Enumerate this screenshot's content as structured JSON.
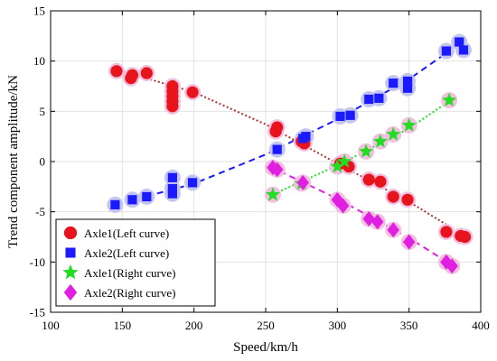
{
  "chart_data": {
    "type": "scatter",
    "title": "",
    "xlabel": "Speed/km/h",
    "ylabel": "Trend component amplitude/kN",
    "xlim": [
      100,
      400
    ],
    "ylim": [
      -15,
      15
    ],
    "x_ticks": [
      100,
      150,
      200,
      250,
      300,
      350,
      400
    ],
    "y_ticks": [
      -15,
      -10,
      -5,
      0,
      5,
      10,
      15
    ],
    "grid": true,
    "legend_position": "bottom-left",
    "series": [
      {
        "name": "Axle1(Left curve)",
        "color": "#e8141b",
        "halo_color": "#f2bfe0",
        "marker": "circle",
        "fit_style": "dotted",
        "fit_color": "#b03030",
        "points": [
          [
            146,
            9.0
          ],
          [
            156,
            8.3
          ],
          [
            157,
            8.6
          ],
          [
            167,
            8.8
          ],
          [
            185,
            7.5
          ],
          [
            185,
            7.0
          ],
          [
            185,
            6.5
          ],
          [
            185,
            6.0
          ],
          [
            185,
            5.5
          ],
          [
            199,
            6.9
          ],
          [
            257,
            3.0
          ],
          [
            258,
            3.4
          ],
          [
            275,
            2.0
          ],
          [
            277,
            1.8
          ],
          [
            302,
            -0.2
          ],
          [
            308,
            -0.5
          ],
          [
            322,
            -1.8
          ],
          [
            330,
            -2.0
          ],
          [
            339,
            -3.5
          ],
          [
            349,
            -3.8
          ],
          [
            376,
            -7.0
          ],
          [
            386,
            -7.4
          ],
          [
            389,
            -7.5
          ]
        ],
        "fit": [
          [
            145,
            9.2
          ],
          [
            200,
            6.9
          ],
          [
            250,
            3.7
          ],
          [
            300,
            -0.2
          ],
          [
            350,
            -4.0
          ],
          [
            390,
            -7.5
          ]
        ]
      },
      {
        "name": "Axle2(Left curve)",
        "color": "#1a1aff",
        "halo_color": "#c4c4f2",
        "marker": "square",
        "fit_style": "dashed",
        "fit_color": "#1a1aff",
        "points": [
          [
            145,
            -4.3
          ],
          [
            157,
            -3.8
          ],
          [
            167,
            -3.5
          ],
          [
            185,
            -1.6
          ],
          [
            185,
            -2.7
          ],
          [
            185,
            -3.2
          ],
          [
            199,
            -2.1
          ],
          [
            258,
            1.2
          ],
          [
            276,
            2.3
          ],
          [
            278,
            2.5
          ],
          [
            302,
            4.5
          ],
          [
            309,
            4.6
          ],
          [
            322,
            6.2
          ],
          [
            329,
            6.3
          ],
          [
            339,
            7.8
          ],
          [
            349,
            8.0
          ],
          [
            349,
            7.3
          ],
          [
            376,
            11.0
          ],
          [
            385,
            11.9
          ],
          [
            388,
            11.1
          ]
        ],
        "fit": [
          [
            145,
            -4.3
          ],
          [
            200,
            -2.2
          ],
          [
            250,
            0.7
          ],
          [
            300,
            4.2
          ],
          [
            350,
            8.2
          ],
          [
            390,
            12.2
          ]
        ]
      },
      {
        "name": "Axle1(Right curve)",
        "color": "#22dd22",
        "halo_color": "#f2bfe0",
        "marker": "star",
        "fit_style": "dotted",
        "fit_color": "#22dd22",
        "points": [
          [
            255,
            -3.3
          ],
          [
            275,
            -2.2
          ],
          [
            300,
            -0.5
          ],
          [
            305,
            0.0
          ],
          [
            320,
            1.0
          ],
          [
            330,
            2.0
          ],
          [
            339,
            2.7
          ],
          [
            350,
            3.6
          ],
          [
            378,
            6.1
          ]
        ],
        "fit": [
          [
            253,
            -3.4
          ],
          [
            300,
            -0.4
          ],
          [
            350,
            3.3
          ],
          [
            380,
            6.2
          ]
        ]
      },
      {
        "name": "Axle2(Right curve)",
        "color": "#e020e0",
        "halo_color": "#f2bfe0",
        "marker": "diamond",
        "fit_style": "dashed",
        "fit_color": "#e020e0",
        "points": [
          [
            255,
            -0.6
          ],
          [
            258,
            -0.8
          ],
          [
            276,
            -2.1
          ],
          [
            300,
            -3.8
          ],
          [
            304,
            -4.4
          ],
          [
            322,
            -5.7
          ],
          [
            328,
            -6.0
          ],
          [
            339,
            -6.8
          ],
          [
            350,
            -8.0
          ],
          [
            376,
            -10.0
          ],
          [
            380,
            -10.4
          ]
        ],
        "fit": [
          [
            253,
            -0.5
          ],
          [
            300,
            -3.7
          ],
          [
            350,
            -7.6
          ],
          [
            382,
            -10.5
          ]
        ]
      }
    ]
  }
}
